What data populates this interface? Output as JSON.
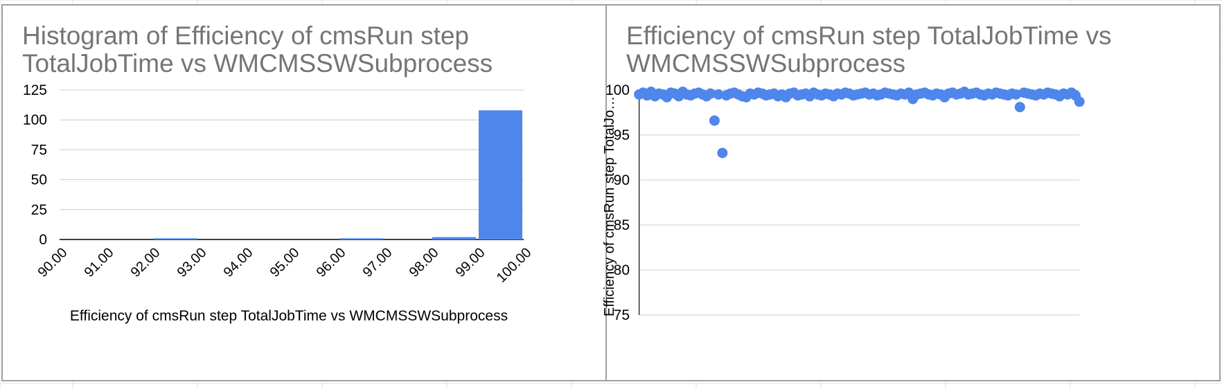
{
  "colors": {
    "bar": "#4f86ec",
    "point": "#4f86ec",
    "grid": "#cccccc",
    "axis": "#000000",
    "title": "#757575",
    "sheet_grid": "#e2e2e2",
    "panel_border": "#9e9e9e"
  },
  "chart_data": [
    {
      "type": "bar",
      "title": "Histogram of Efficiency of cmsRun step TotalJobTime vs WMCMSSWSubprocess",
      "xlabel": "Efficiency of cmsRun step TotalJobTime vs WMCMSSWSubprocess",
      "ylabel": "",
      "bin_edges": [
        "90.00",
        "91.00",
        "92.00",
        "93.00",
        "94.00",
        "95.00",
        "96.00",
        "97.00",
        "98.00",
        "99.00",
        "100.00"
      ],
      "values": [
        0,
        0,
        1,
        0,
        0,
        0,
        1,
        0,
        2,
        108
      ],
      "ylim": [
        0,
        125
      ],
      "yticks": [
        "0",
        "25",
        "50",
        "75",
        "100",
        "125"
      ],
      "grid": true,
      "legend": "none"
    },
    {
      "type": "scatter",
      "title": "Efficiency of cmsRun step TotalJobTime vs WMCMSSWSubprocess",
      "xlabel": "",
      "ylabel": "Efficiency of cmsRun step TotalJo…",
      "ylim": [
        75,
        100
      ],
      "xlim": [
        1,
        112
      ],
      "yticks": [
        "75",
        "80",
        "85",
        "90",
        "95",
        "100"
      ],
      "grid": true,
      "legend": "none",
      "x": [
        1,
        2,
        3,
        4,
        5,
        6,
        7,
        8,
        9,
        10,
        11,
        12,
        13,
        14,
        15,
        16,
        17,
        18,
        19,
        20,
        21,
        22,
        23,
        24,
        25,
        26,
        27,
        28,
        29,
        30,
        31,
        32,
        33,
        34,
        35,
        36,
        37,
        38,
        39,
        40,
        41,
        42,
        43,
        44,
        45,
        46,
        47,
        48,
        49,
        50,
        51,
        52,
        53,
        54,
        55,
        56,
        57,
        58,
        59,
        60,
        61,
        62,
        63,
        64,
        65,
        66,
        67,
        68,
        69,
        70,
        71,
        72,
        73,
        74,
        75,
        76,
        77,
        78,
        79,
        80,
        81,
        82,
        83,
        84,
        85,
        86,
        87,
        88,
        89,
        90,
        91,
        92,
        93,
        94,
        95,
        96,
        97,
        98,
        99,
        100,
        101,
        102,
        103,
        104,
        105,
        106,
        107,
        108,
        109,
        110,
        111,
        112
      ],
      "y": [
        99.5,
        99.7,
        99.4,
        99.8,
        99.3,
        99.6,
        99.5,
        99.2,
        99.7,
        99.6,
        99.3,
        99.8,
        99.5,
        99.4,
        99.6,
        99.7,
        99.5,
        99.3,
        99.6,
        96.6,
        99.5,
        93.0,
        99.4,
        99.6,
        99.7,
        99.5,
        99.3,
        99.2,
        99.6,
        99.5,
        99.7,
        99.6,
        99.4,
        99.5,
        99.6,
        99.3,
        99.5,
        99.2,
        99.6,
        99.7,
        99.4,
        99.5,
        99.6,
        99.3,
        99.7,
        99.5,
        99.4,
        99.6,
        99.5,
        99.3,
        99.6,
        99.5,
        99.7,
        99.6,
        99.4,
        99.5,
        99.6,
        99.7,
        99.5,
        99.6,
        99.4,
        99.5,
        99.7,
        99.6,
        99.5,
        99.4,
        99.6,
        99.5,
        99.7,
        99.0,
        99.5,
        99.6,
        99.7,
        99.5,
        99.4,
        99.6,
        99.5,
        99.2,
        99.6,
        99.7,
        99.5,
        99.6,
        99.8,
        99.5,
        99.6,
        99.7,
        99.5,
        99.4,
        99.6,
        99.5,
        99.7,
        99.6,
        99.5,
        99.4,
        99.6,
        99.5,
        98.1,
        99.7,
        99.6,
        99.5,
        99.4,
        99.6,
        99.5,
        99.7,
        99.6,
        99.5,
        99.3,
        99.6,
        99.5,
        99.7,
        99.4,
        98.7
      ]
    }
  ]
}
